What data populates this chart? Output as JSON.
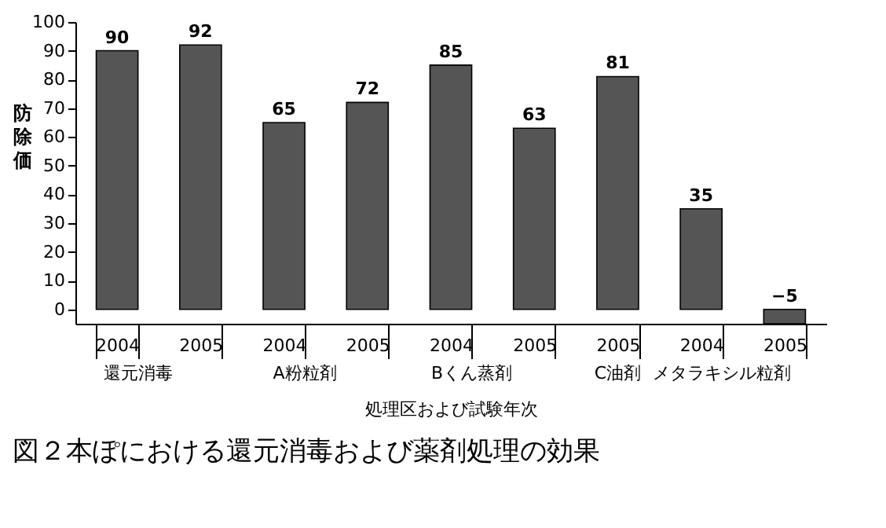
{
  "chart_data": {
    "type": "bar",
    "xlabel": "処理区および試験年次",
    "ylabel": "防除価",
    "categories": [
      "2004",
      "2005",
      "2004",
      "2005",
      "2004",
      "2005",
      "2005",
      "2004",
      "2005"
    ],
    "values": [
      90,
      92,
      65,
      72,
      85,
      63,
      81,
      35,
      -5
    ],
    "color": "#555555",
    "ylim": [
      -5,
      100
    ],
    "yticks": [
      0,
      10,
      20,
      30,
      40,
      50,
      60,
      70,
      80,
      90,
      100
    ],
    "data_labels": true,
    "annotations": [
      "還元消毒",
      "A粉粒剤",
      "Bくん蒸剤",
      "C油剤",
      "メタラキシル粒剤",
      "図２本ぽにおける還元消毒および薬剤処理の効果"
    ]
  }
}
